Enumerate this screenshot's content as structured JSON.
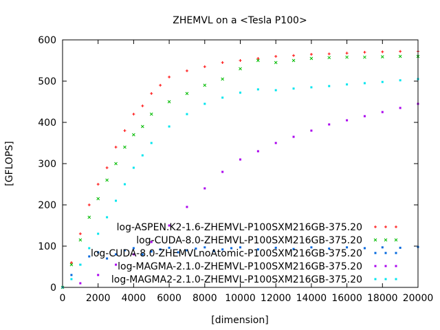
{
  "chart_data": {
    "type": "scatter",
    "title": "ZHEMVL on a <Tesla P100>",
    "xlabel": "[dimension]",
    "ylabel": "[GFLOPS]",
    "xlim": [
      0,
      20000
    ],
    "ylim": [
      0,
      600
    ],
    "x_ticks": [
      "0",
      "2000",
      "4000",
      "6000",
      "8000",
      "10000",
      "12000",
      "14000",
      "16000",
      "18000",
      "20000"
    ],
    "y_ticks": [
      "0",
      "100",
      "200",
      "300",
      "400",
      "500",
      "600"
    ],
    "legend_position": "bottom-right",
    "grid": false,
    "series": [
      {
        "name": "log-ASPEN.K2-1.6-ZHEMVL-P100SXM216GB-375.20",
        "color": "#ff0000",
        "marker": "plus",
        "points": [
          [
            0,
            0
          ],
          [
            500,
            60
          ],
          [
            1000,
            130
          ],
          [
            1500,
            200
          ],
          [
            2000,
            250
          ],
          [
            2500,
            290
          ],
          [
            3000,
            340
          ],
          [
            3500,
            380
          ],
          [
            4000,
            420
          ],
          [
            4500,
            440
          ],
          [
            5000,
            470
          ],
          [
            5500,
            490
          ],
          [
            6000,
            510
          ],
          [
            7000,
            525
          ],
          [
            8000,
            535
          ],
          [
            9000,
            545
          ],
          [
            10000,
            550
          ],
          [
            11000,
            555
          ],
          [
            12000,
            560
          ],
          [
            13000,
            562
          ],
          [
            14000,
            565
          ],
          [
            15000,
            566
          ],
          [
            16000,
            568
          ],
          [
            17000,
            570
          ],
          [
            18000,
            571
          ],
          [
            19000,
            572
          ],
          [
            20000,
            572
          ]
        ]
      },
      {
        "name": "log-CUDA-8.0-ZHEMVL-P100SXM216GB-375.20",
        "color": "#00bb00",
        "marker": "cross",
        "points": [
          [
            0,
            0
          ],
          [
            500,
            55
          ],
          [
            1000,
            115
          ],
          [
            1500,
            170
          ],
          [
            2000,
            215
          ],
          [
            2500,
            260
          ],
          [
            3000,
            300
          ],
          [
            3500,
            340
          ],
          [
            4000,
            370
          ],
          [
            4500,
            390
          ],
          [
            5000,
            420
          ],
          [
            6000,
            450
          ],
          [
            7000,
            470
          ],
          [
            8000,
            490
          ],
          [
            9000,
            505
          ],
          [
            10000,
            530
          ],
          [
            11000,
            550
          ],
          [
            12000,
            545
          ],
          [
            13000,
            550
          ],
          [
            14000,
            555
          ],
          [
            15000,
            557
          ],
          [
            16000,
            558
          ],
          [
            17000,
            558
          ],
          [
            18000,
            559
          ],
          [
            19000,
            560
          ],
          [
            20000,
            560
          ]
        ]
      },
      {
        "name": "log-CUDA-8.0-ZHEMVLnoAtomic-P100SXM216GB-375.20",
        "color": "#0066dd",
        "marker": "square",
        "points": [
          [
            0,
            0
          ],
          [
            500,
            30
          ],
          [
            1000,
            55
          ],
          [
            1500,
            75
          ],
          [
            2000,
            85
          ],
          [
            2500,
            70
          ],
          [
            3000,
            80
          ],
          [
            3500,
            90
          ],
          [
            4000,
            95
          ],
          [
            4500,
            80
          ],
          [
            5000,
            87
          ],
          [
            5500,
            92
          ],
          [
            6000,
            96
          ],
          [
            6500,
            85
          ],
          [
            7000,
            90
          ],
          [
            7500,
            94
          ],
          [
            8000,
            97
          ],
          [
            8500,
            88
          ],
          [
            9000,
            92
          ],
          [
            9500,
            95
          ],
          [
            10000,
            97
          ],
          [
            11000,
            92
          ],
          [
            12000,
            96
          ],
          [
            13000,
            93
          ],
          [
            14000,
            97
          ],
          [
            15000,
            94
          ],
          [
            16000,
            97
          ],
          [
            17000,
            95
          ],
          [
            18000,
            97
          ],
          [
            19000,
            96
          ],
          [
            20000,
            98
          ]
        ]
      },
      {
        "name": "log-MAGMA-2.1.0-ZHEMVL-P100SXM216GB-375.20",
        "color": "#aa00ee",
        "marker": "square",
        "points": [
          [
            0,
            0
          ],
          [
            1000,
            10
          ],
          [
            2000,
            30
          ],
          [
            3000,
            55
          ],
          [
            4000,
            80
          ],
          [
            5000,
            110
          ],
          [
            6000,
            150
          ],
          [
            7000,
            195
          ],
          [
            8000,
            240
          ],
          [
            9000,
            280
          ],
          [
            10000,
            310
          ],
          [
            11000,
            330
          ],
          [
            12000,
            350
          ],
          [
            13000,
            365
          ],
          [
            14000,
            380
          ],
          [
            15000,
            395
          ],
          [
            16000,
            405
          ],
          [
            17000,
            415
          ],
          [
            18000,
            425
          ],
          [
            19000,
            435
          ],
          [
            20000,
            445
          ]
        ]
      },
      {
        "name": "log-MAGMA2-2.1.0-ZHEMVL-P100SXM216GB-375.20",
        "color": "#00e5ee",
        "marker": "square",
        "points": [
          [
            0,
            0
          ],
          [
            500,
            20
          ],
          [
            1000,
            55
          ],
          [
            1500,
            95
          ],
          [
            2000,
            130
          ],
          [
            2500,
            170
          ],
          [
            3000,
            210
          ],
          [
            3500,
            250
          ],
          [
            4000,
            290
          ],
          [
            4500,
            320
          ],
          [
            5000,
            350
          ],
          [
            6000,
            390
          ],
          [
            7000,
            420
          ],
          [
            8000,
            445
          ],
          [
            9000,
            460
          ],
          [
            10000,
            472
          ],
          [
            11000,
            480
          ],
          [
            12000,
            478
          ],
          [
            13000,
            482
          ],
          [
            14000,
            485
          ],
          [
            15000,
            488
          ],
          [
            16000,
            492
          ],
          [
            17000,
            495
          ],
          [
            18000,
            498
          ],
          [
            19000,
            502
          ],
          [
            20000,
            505
          ]
        ]
      }
    ]
  }
}
